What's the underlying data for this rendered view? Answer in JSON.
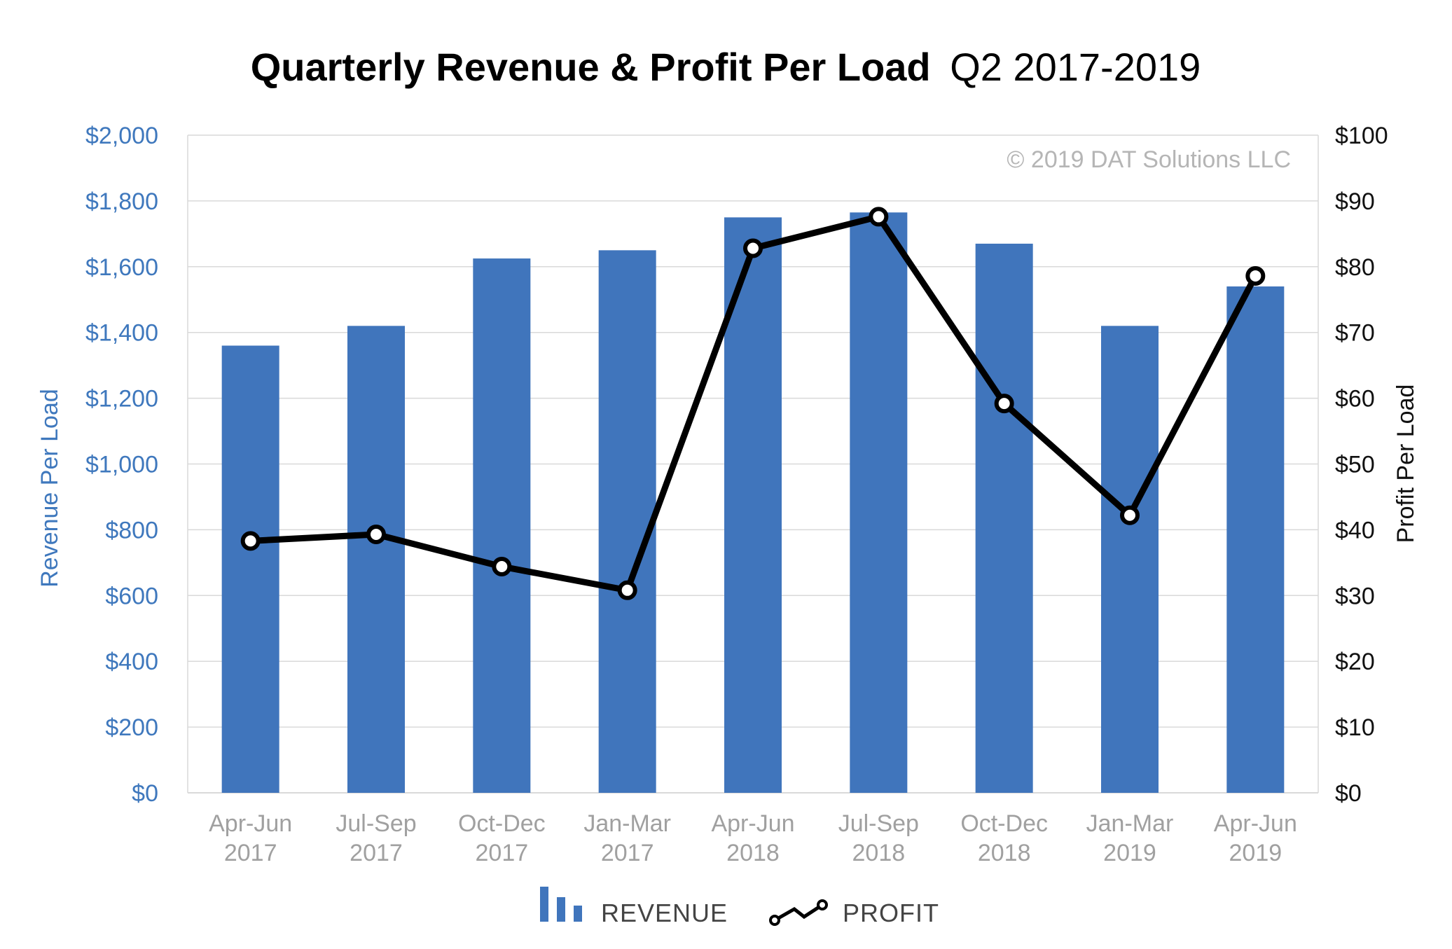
{
  "title": {
    "bold": "Quarterly Revenue & Profit Per Load",
    "regular": "Q2 2017-2019"
  },
  "watermark": "© 2019 DAT Solutions LLC",
  "legend": {
    "revenue_label": "REVENUE",
    "profit_label": "PROFIT"
  },
  "colors": {
    "revenue": "#4075BC",
    "profit": "#000000",
    "left_axis_text": "#3F78BD",
    "x_axis_text": "#A0A0A0",
    "gridline": "#D9D9D9",
    "watermark": "#B5B5B5"
  },
  "chart_data": {
    "type": "bar",
    "categories": [
      [
        "Apr-Jun",
        "2017"
      ],
      [
        "Jul-Sep",
        "2017"
      ],
      [
        "Oct-Dec",
        "2017"
      ],
      [
        "Jan-Mar",
        "2017"
      ],
      [
        "Apr-Jun",
        "2018"
      ],
      [
        "Jul-Sep",
        "2018"
      ],
      [
        "Oct-Dec",
        "2018"
      ],
      [
        "Jan-Mar",
        "2019"
      ],
      [
        "Apr-Jun",
        "2019"
      ]
    ],
    "series": [
      {
        "name": "REVENUE",
        "type": "bar",
        "axis": "left",
        "values": [
          1360,
          1420,
          1625,
          1650,
          1750,
          1765,
          1670,
          1420,
          1540
        ]
      },
      {
        "name": "PROFIT",
        "type": "line",
        "axis": "right",
        "values": [
          38.3,
          39.3,
          34.4,
          30.8,
          82.8,
          87.6,
          59.2,
          42.2,
          78.6
        ]
      }
    ],
    "ylabel": "Revenue Per Load",
    "y2label": "Profit Per Load",
    "ylim": [
      0,
      2000
    ],
    "y2lim": [
      0,
      100
    ],
    "yticks": [
      "$0",
      "$200",
      "$400",
      "$600",
      "$800",
      "$1,000",
      "$1,200",
      "$1,400",
      "$1,600",
      "$1,800",
      "$2,000"
    ],
    "y2ticks": [
      "$0",
      "$10",
      "$20",
      "$30",
      "$40",
      "$50",
      "$60",
      "$70",
      "$80",
      "$90",
      "$100"
    ],
    "grid": true,
    "legend_position": "bottom-center"
  }
}
